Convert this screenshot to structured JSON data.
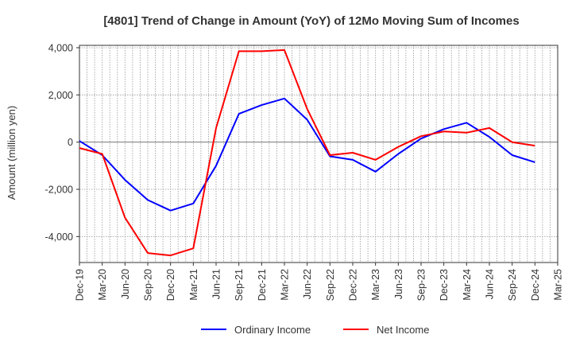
{
  "chart_data": {
    "type": "line",
    "title": "[4801]  Trend of Change in Amount (YoY) of 12Mo Moving Sum of Incomes",
    "xlabel": "",
    "ylabel": "Amount (million yen)",
    "ylim": [
      -5100,
      4100
    ],
    "yticks": [
      4000,
      2000,
      0,
      -2000,
      -4000
    ],
    "ytick_labels": [
      "4,000",
      "2,000",
      "0",
      "-2,000",
      "-4,000"
    ],
    "categories": [
      "Dec-19",
      "Mar-20",
      "Jun-20",
      "Sep-20",
      "Dec-20",
      "Mar-21",
      "Jun-21",
      "Sep-21",
      "Dec-21",
      "Mar-22",
      "Jun-22",
      "Sep-22",
      "Dec-22",
      "Mar-23",
      "Jun-23",
      "Sep-23",
      "Dec-23",
      "Mar-24",
      "Jun-24",
      "Sep-24",
      "Dec-24",
      "Mar-25"
    ],
    "grid": true,
    "legend": "bottom-center",
    "series": [
      {
        "name": "Ordinary Income",
        "color": "#0000ff",
        "values": [
          50,
          -550,
          -1600,
          -2450,
          -2900,
          -2600,
          -1000,
          1200,
          1570,
          1850,
          950,
          -600,
          -750,
          -1250,
          -500,
          150,
          550,
          820,
          220,
          -550,
          -850,
          null
        ]
      },
      {
        "name": "Net Income",
        "color": "#ff0000",
        "values": [
          -250,
          -500,
          -3200,
          -4700,
          -4800,
          -4500,
          600,
          3850,
          3850,
          3900,
          1400,
          -550,
          -450,
          -750,
          -200,
          250,
          450,
          400,
          600,
          0,
          -150,
          null
        ]
      }
    ]
  }
}
